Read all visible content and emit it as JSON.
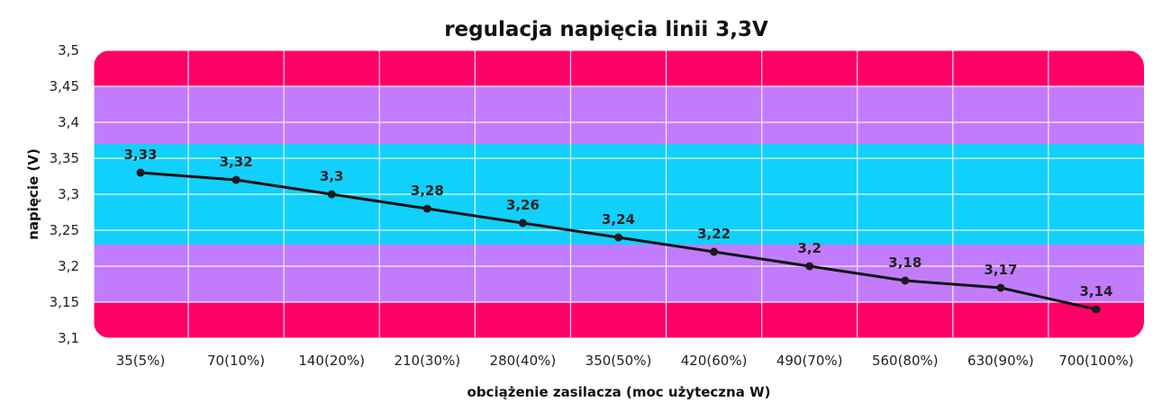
{
  "chart_data": {
    "type": "line",
    "title": "regulacja napięcia linii 3,3V",
    "xlabel": "obciążenie zasilacza (moc użyteczna W)",
    "ylabel": "napięcie (V)",
    "categories": [
      "35(5%)",
      "70(10%)",
      "140(20%)",
      "210(30%)",
      "280(40%)",
      "350(50%)",
      "420(60%)",
      "490(70%)",
      "560(80%)",
      "630(90%)",
      "700(100%)"
    ],
    "series": [
      {
        "values": [
          3.33,
          3.32,
          3.3,
          3.28,
          3.26,
          3.24,
          3.22,
          3.2,
          3.18,
          3.17,
          3.14
        ],
        "data_labels": [
          "3,33",
          "3,32",
          "3,3",
          "3,28",
          "3,26",
          "3,24",
          "3,22",
          "3,2",
          "3,18",
          "3,17",
          "3,14"
        ],
        "color": "#111111"
      }
    ],
    "ylim": [
      3.1,
      3.5
    ],
    "yticks": [
      3.5,
      3.45,
      3.4,
      3.35,
      3.3,
      3.25,
      3.2,
      3.15,
      3.1
    ],
    "ytick_labels": [
      "3,5",
      "3,45",
      "3,4",
      "3,35",
      "3,3",
      "3,25",
      "3,2",
      "3,15",
      "3,1"
    ],
    "bands": [
      {
        "from": 3.45,
        "to": 3.5,
        "color": "#ff0066"
      },
      {
        "from": 3.37,
        "to": 3.45,
        "color": "#c27cfb"
      },
      {
        "from": 3.23,
        "to": 3.37,
        "color": "#11d0fb"
      },
      {
        "from": 3.15,
        "to": 3.23,
        "color": "#c27cfb"
      },
      {
        "from": 3.1,
        "to": 3.15,
        "color": "#ff0066"
      }
    ],
    "grid": true,
    "legend": "none"
  }
}
